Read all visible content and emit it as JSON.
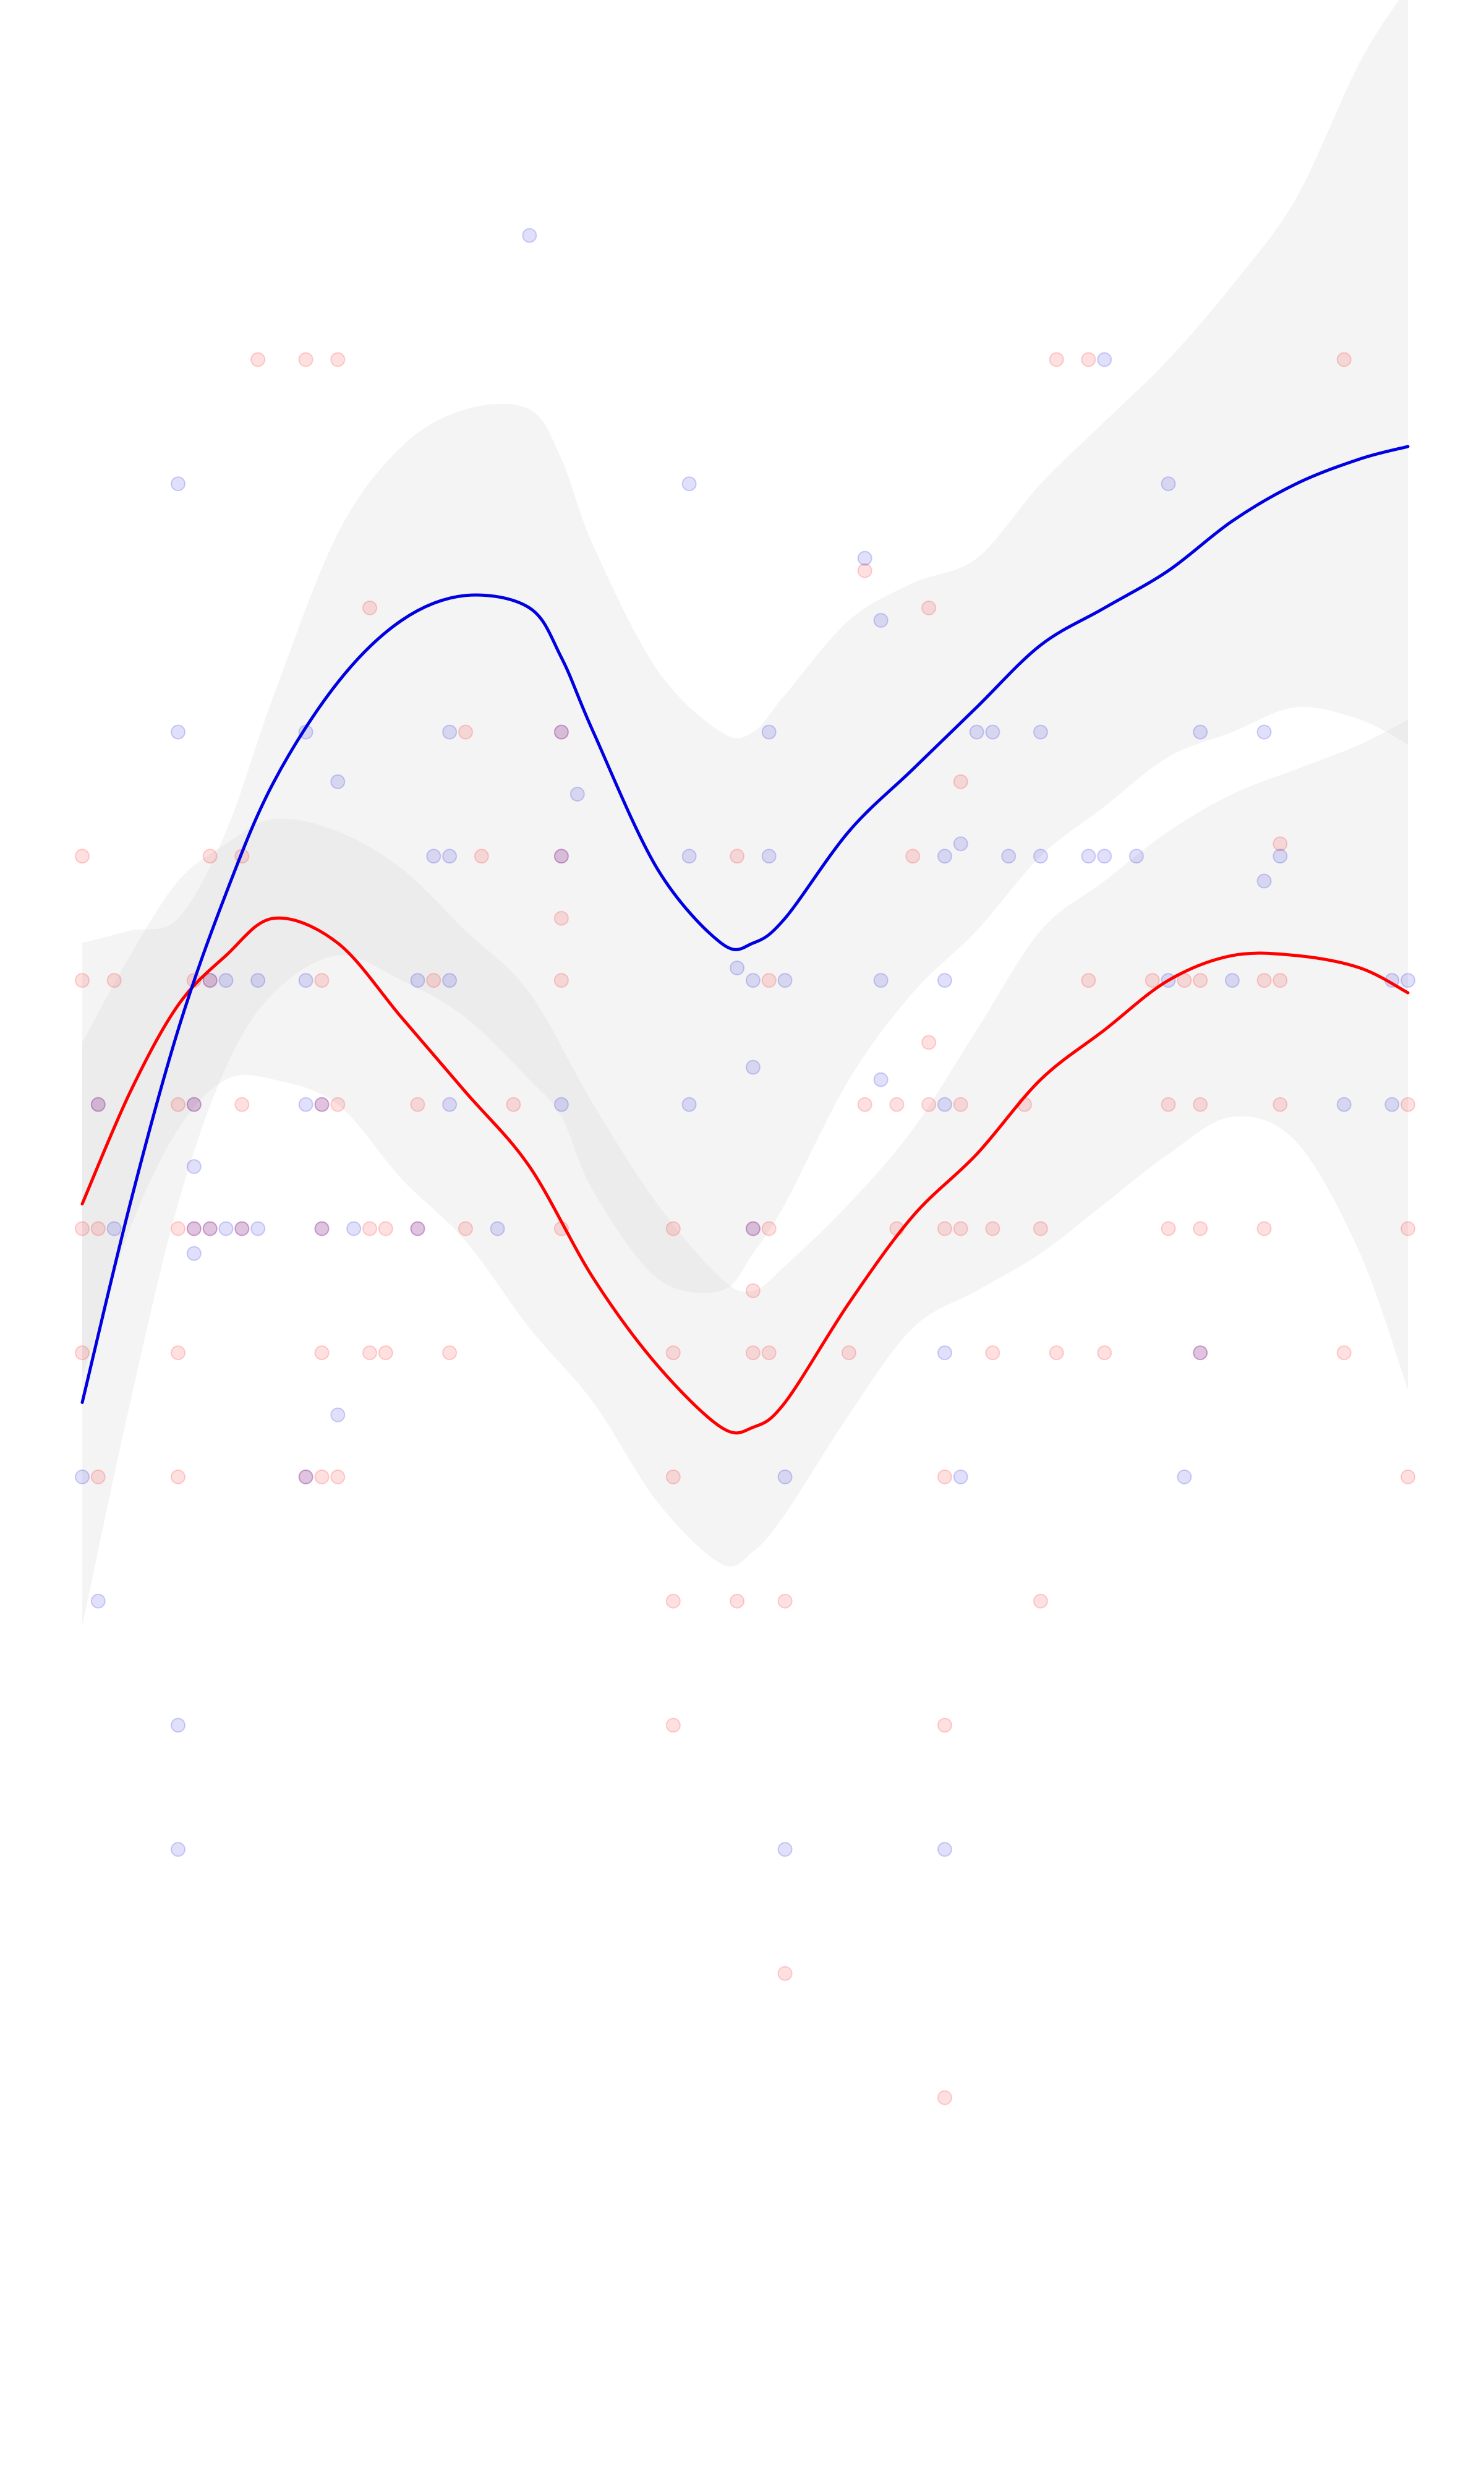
{
  "chart_data": {
    "type": "scatter",
    "title": "",
    "xlabel": "",
    "ylabel": "",
    "xlim": [
      0,
      83
    ],
    "ylim": [
      0,
      18
    ],
    "grid": false,
    "axes_visible": false,
    "legend": "none",
    "colors": {
      "red": "#ff0000",
      "blue": "#0000e0",
      "band": "#d9d9d9",
      "background": "#ffffff"
    },
    "series": [
      {
        "color": "#ff0000",
        "points": [
          [
            0,
            9
          ],
          [
            1,
            9
          ],
          [
            0,
            8
          ],
          [
            1,
            7
          ],
          [
            6,
            10
          ],
          [
            6,
            8
          ],
          [
            6,
            7
          ],
          [
            6,
            9
          ],
          [
            7,
            11
          ],
          [
            7,
            10
          ],
          [
            7,
            9
          ],
          [
            8,
            9
          ],
          [
            8,
            11
          ],
          [
            8,
            12
          ],
          [
            10,
            10
          ],
          [
            10,
            9
          ],
          [
            10,
            12
          ],
          [
            11,
            16
          ],
          [
            14,
            7
          ],
          [
            14,
            16
          ],
          [
            15,
            8
          ],
          [
            15,
            7
          ],
          [
            15,
            9
          ],
          [
            15,
            10
          ],
          [
            15,
            11
          ],
          [
            16,
            16
          ],
          [
            16,
            7
          ],
          [
            16,
            10
          ],
          [
            18,
            8
          ],
          [
            18,
            9
          ],
          [
            18,
            14
          ],
          [
            19,
            8
          ],
          [
            19,
            9
          ],
          [
            21,
            10
          ],
          [
            21,
            9
          ],
          [
            23,
            8
          ],
          [
            22,
            11
          ],
          [
            24,
            9
          ],
          [
            25,
            12
          ],
          [
            27,
            10
          ],
          [
            24,
            13
          ],
          [
            30,
            9
          ],
          [
            30,
            11
          ],
          [
            30,
            11.5
          ],
          [
            30,
            13
          ],
          [
            30,
            12
          ],
          [
            37,
            8
          ],
          [
            37,
            7
          ],
          [
            37,
            6
          ],
          [
            37,
            9
          ],
          [
            37,
            5
          ],
          [
            41,
            12
          ],
          [
            41,
            6
          ],
          [
            42,
            8
          ],
          [
            42,
            9
          ],
          [
            42,
            8.5
          ],
          [
            43,
            9
          ],
          [
            43,
            11
          ],
          [
            43,
            8
          ],
          [
            44,
            3
          ],
          [
            44,
            6
          ],
          [
            48,
            8
          ],
          [
            49,
            10
          ],
          [
            49,
            14.3
          ],
          [
            51,
            9
          ],
          [
            51,
            10
          ],
          [
            52,
            12
          ],
          [
            53,
            14
          ],
          [
            53,
            10
          ],
          [
            53,
            10.5
          ],
          [
            54,
            9
          ],
          [
            54,
            5
          ],
          [
            54,
            2
          ],
          [
            54,
            7
          ],
          [
            55,
            12.6
          ],
          [
            55,
            10
          ],
          [
            55,
            9
          ],
          [
            57,
            8
          ],
          [
            57,
            9
          ],
          [
            59,
            10
          ],
          [
            60,
            6
          ],
          [
            60,
            9
          ],
          [
            61,
            16
          ],
          [
            61,
            8
          ],
          [
            63,
            11
          ],
          [
            63,
            16
          ],
          [
            64,
            8
          ],
          [
            67,
            11
          ],
          [
            68,
            10
          ],
          [
            68,
            9
          ],
          [
            69,
            11
          ],
          [
            70,
            8
          ],
          [
            70,
            11
          ],
          [
            70,
            9
          ],
          [
            70,
            10
          ],
          [
            74,
            11
          ],
          [
            74,
            9
          ],
          [
            75,
            11
          ],
          [
            75,
            10
          ],
          [
            75,
            12.1
          ],
          [
            79,
            16
          ],
          [
            79,
            8
          ],
          [
            83,
            9
          ],
          [
            83,
            7
          ],
          [
            83,
            10
          ],
          [
            0,
            12
          ],
          [
            0,
            11
          ],
          [
            1,
            10
          ],
          [
            2,
            11
          ]
        ]
      },
      {
        "color": "#0000e0",
        "points": [
          [
            0,
            7
          ],
          [
            1,
            6
          ],
          [
            1,
            10
          ],
          [
            2,
            9
          ],
          [
            6,
            15
          ],
          [
            6,
            5
          ],
          [
            6,
            13
          ],
          [
            6,
            4
          ],
          [
            7,
            9
          ],
          [
            7,
            10
          ],
          [
            7,
            8.8
          ],
          [
            7,
            9.5
          ],
          [
            8,
            11
          ],
          [
            8,
            9
          ],
          [
            9,
            9
          ],
          [
            9,
            11
          ],
          [
            10,
            9
          ],
          [
            11,
            9
          ],
          [
            11,
            11
          ],
          [
            14,
            13
          ],
          [
            14,
            10
          ],
          [
            14,
            11
          ],
          [
            14,
            7
          ],
          [
            15,
            9
          ],
          [
            15,
            10
          ],
          [
            16,
            7.5
          ],
          [
            16,
            12.6
          ],
          [
            17,
            9
          ],
          [
            21,
            11
          ],
          [
            21,
            9
          ],
          [
            22,
            12
          ],
          [
            23,
            10
          ],
          [
            23,
            11
          ],
          [
            23,
            12
          ],
          [
            23,
            13
          ],
          [
            26,
            9
          ],
          [
            28,
            17
          ],
          [
            30,
            13
          ],
          [
            30,
            10
          ],
          [
            30,
            12
          ],
          [
            31,
            12.5
          ],
          [
            38,
            10
          ],
          [
            38,
            12
          ],
          [
            38,
            15
          ],
          [
            41,
            11.1
          ],
          [
            42,
            10.3
          ],
          [
            42,
            11
          ],
          [
            42,
            9
          ],
          [
            43,
            13
          ],
          [
            43,
            12
          ],
          [
            44,
            11
          ],
          [
            44,
            7
          ],
          [
            44,
            4
          ],
          [
            49,
            14.4
          ],
          [
            50,
            10.2
          ],
          [
            50,
            13.9
          ],
          [
            50,
            11
          ],
          [
            54,
            10
          ],
          [
            54,
            11
          ],
          [
            54,
            4
          ],
          [
            54,
            8
          ],
          [
            54,
            12
          ],
          [
            55,
            12.1
          ],
          [
            55,
            7
          ],
          [
            56,
            13
          ],
          [
            57,
            13
          ],
          [
            58,
            12
          ],
          [
            60,
            13
          ],
          [
            60,
            12
          ],
          [
            63,
            12
          ],
          [
            64,
            12
          ],
          [
            64,
            16
          ],
          [
            66,
            12
          ],
          [
            68,
            11
          ],
          [
            68,
            15
          ],
          [
            69,
            7
          ],
          [
            70,
            13
          ],
          [
            70,
            8
          ],
          [
            72,
            11
          ],
          [
            74,
            13
          ],
          [
            75,
            12
          ],
          [
            74,
            11.8
          ],
          [
            79,
            10
          ],
          [
            82,
            10
          ],
          [
            82,
            11
          ],
          [
            83,
            11
          ]
        ]
      }
    ],
    "trend_lines": [
      {
        "color": "#ff0000",
        "x": [
          0,
          3,
          6,
          9,
          12,
          16,
          20,
          24,
          28,
          32,
          36,
          40,
          42,
          44,
          48,
          52,
          56,
          60,
          64,
          68,
          72,
          76,
          80,
          83
        ],
        "y": [
          9.2,
          10.1,
          10.8,
          11.2,
          11.5,
          11.3,
          10.7,
          10.1,
          9.5,
          8.6,
          7.9,
          7.4,
          7.4,
          7.6,
          8.4,
          9.1,
          9.6,
          10.2,
          10.6,
          11.0,
          11.2,
          11.2,
          11.1,
          10.9
        ],
        "band_lower": [
          7.8,
          9.0,
          9.8,
          10.2,
          10.2,
          10.0,
          9.4,
          8.9,
          8.2,
          7.6,
          6.8,
          6.3,
          6.4,
          6.7,
          7.5,
          8.2,
          8.5,
          8.8,
          9.2,
          9.6,
          9.9,
          9.7,
          8.8,
          7.7
        ],
        "band_upper": [
          10.5,
          11.2,
          11.8,
          12.1,
          12.3,
          12.2,
          11.9,
          11.4,
          10.9,
          10.0,
          9.2,
          8.6,
          8.5,
          8.7,
          9.2,
          9.8,
          10.6,
          11.4,
          11.8,
          12.2,
          12.5,
          12.7,
          12.9,
          13.1
        ]
      },
      {
        "color": "#0000e0",
        "x": [
          0,
          3,
          6,
          9,
          12,
          16,
          20,
          24,
          28,
          30,
          32,
          36,
          40,
          42,
          44,
          48,
          52,
          56,
          60,
          64,
          68,
          72,
          76,
          80,
          83
        ],
        "y": [
          7.6,
          9.2,
          10.6,
          11.7,
          12.6,
          13.4,
          13.9,
          14.1,
          14.0,
          13.6,
          13.0,
          11.9,
          11.3,
          11.3,
          11.5,
          12.2,
          12.7,
          13.2,
          13.7,
          14.0,
          14.3,
          14.7,
          15.0,
          15.2,
          15.3
        ],
        "band_lower": [
          5.8,
          7.6,
          9.2,
          10.3,
          10.9,
          11.2,
          11.0,
          10.7,
          10.2,
          9.9,
          9.3,
          8.6,
          8.5,
          8.8,
          9.2,
          10.2,
          10.9,
          11.4,
          12.0,
          12.4,
          12.8,
          13.0,
          13.2,
          13.1,
          12.9
        ],
        "band_upper": [
          11.3,
          11.4,
          11.5,
          12.2,
          13.3,
          14.6,
          15.3,
          15.6,
          15.6,
          15.2,
          14.5,
          13.5,
          13.0,
          13.0,
          13.3,
          13.9,
          14.2,
          14.4,
          15.0,
          15.5,
          16.0,
          16.6,
          17.3,
          18.4,
          19.0
        ]
      }
    ]
  }
}
